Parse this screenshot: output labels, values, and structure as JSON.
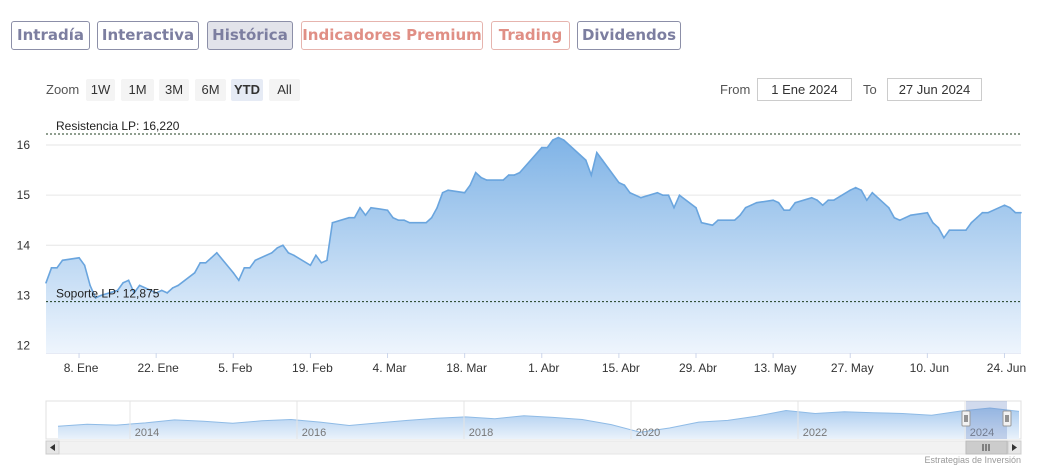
{
  "tabs": [
    {
      "label": "Intradía",
      "style": "normal"
    },
    {
      "label": "Interactiva",
      "style": "normal"
    },
    {
      "label": "Histórica",
      "style": "active"
    },
    {
      "label": "Indicadores Premium",
      "style": "premium"
    },
    {
      "label": "Trading",
      "style": "premium"
    },
    {
      "label": "Dividendos",
      "style": "normal"
    }
  ],
  "range_selector": {
    "zoom_label": "Zoom",
    "buttons": [
      "1W",
      "1M",
      "3M",
      "6M",
      "YTD",
      "All"
    ],
    "selected": "YTD",
    "from_label": "From",
    "from_value": "1 Ene 2024",
    "to_label": "To",
    "to_value": "27 Jun 2024"
  },
  "chart_data": {
    "type": "area",
    "ylim": [
      11.85,
      16.5
    ],
    "yticks": [
      12,
      13,
      14,
      15,
      16
    ],
    "xlim": [
      "2024-01-02",
      "2024-06-27"
    ],
    "xticks": [
      {
        "date": "2024-01-08",
        "label": "8. Ene"
      },
      {
        "date": "2024-01-22",
        "label": "22. Ene"
      },
      {
        "date": "2024-02-05",
        "label": "5. Feb"
      },
      {
        "date": "2024-02-19",
        "label": "19. Feb"
      },
      {
        "date": "2024-03-04",
        "label": "4. Mar"
      },
      {
        "date": "2024-03-18",
        "label": "18. Mar"
      },
      {
        "date": "2024-04-01",
        "label": "1. Abr"
      },
      {
        "date": "2024-04-15",
        "label": "15. Abr"
      },
      {
        "date": "2024-04-29",
        "label": "29. Abr"
      },
      {
        "date": "2024-05-13",
        "label": "13. May"
      },
      {
        "date": "2024-05-27",
        "label": "27. May"
      },
      {
        "date": "2024-06-10",
        "label": "10. Jun"
      },
      {
        "date": "2024-06-24",
        "label": "24. Jun"
      }
    ],
    "points": [
      [
        "2024-01-02",
        13.25
      ],
      [
        "2024-01-03",
        13.55
      ],
      [
        "2024-01-04",
        13.55
      ],
      [
        "2024-01-05",
        13.7
      ],
      [
        "2024-01-08",
        13.75
      ],
      [
        "2024-01-09",
        13.6
      ],
      [
        "2024-01-10",
        13.2
      ],
      [
        "2024-01-11",
        12.95
      ],
      [
        "2024-01-12",
        13.0
      ],
      [
        "2024-01-15",
        13.1
      ],
      [
        "2024-01-16",
        13.25
      ],
      [
        "2024-01-17",
        13.3
      ],
      [
        "2024-01-18",
        13.05
      ],
      [
        "2024-01-19",
        13.2
      ],
      [
        "2024-01-22",
        13.05
      ],
      [
        "2024-01-23",
        13.1
      ],
      [
        "2024-01-24",
        13.05
      ],
      [
        "2024-01-25",
        13.15
      ],
      [
        "2024-01-26",
        13.2
      ],
      [
        "2024-01-29",
        13.45
      ],
      [
        "2024-01-30",
        13.65
      ],
      [
        "2024-01-31",
        13.65
      ],
      [
        "2024-02-01",
        13.75
      ],
      [
        "2024-02-02",
        13.85
      ],
      [
        "2024-02-05",
        13.45
      ],
      [
        "2024-02-06",
        13.3
      ],
      [
        "2024-02-07",
        13.55
      ],
      [
        "2024-02-08",
        13.55
      ],
      [
        "2024-02-09",
        13.7
      ],
      [
        "2024-02-12",
        13.85
      ],
      [
        "2024-02-13",
        13.95
      ],
      [
        "2024-02-14",
        14.0
      ],
      [
        "2024-02-15",
        13.85
      ],
      [
        "2024-02-16",
        13.8
      ],
      [
        "2024-02-19",
        13.6
      ],
      [
        "2024-02-20",
        13.8
      ],
      [
        "2024-02-21",
        13.65
      ],
      [
        "2024-02-22",
        13.7
      ],
      [
        "2024-02-23",
        14.45
      ],
      [
        "2024-02-26",
        14.55
      ],
      [
        "2024-02-27",
        14.55
      ],
      [
        "2024-02-28",
        14.75
      ],
      [
        "2024-02-29",
        14.6
      ],
      [
        "2024-03-01",
        14.75
      ],
      [
        "2024-03-04",
        14.7
      ],
      [
        "2024-03-05",
        14.55
      ],
      [
        "2024-03-06",
        14.5
      ],
      [
        "2024-03-07",
        14.5
      ],
      [
        "2024-03-08",
        14.45
      ],
      [
        "2024-03-11",
        14.45
      ],
      [
        "2024-03-12",
        14.55
      ],
      [
        "2024-03-13",
        14.75
      ],
      [
        "2024-03-14",
        15.05
      ],
      [
        "2024-03-15",
        15.1
      ],
      [
        "2024-03-18",
        15.05
      ],
      [
        "2024-03-19",
        15.2
      ],
      [
        "2024-03-20",
        15.45
      ],
      [
        "2024-03-21",
        15.35
      ],
      [
        "2024-03-22",
        15.3
      ],
      [
        "2024-03-25",
        15.3
      ],
      [
        "2024-03-26",
        15.4
      ],
      [
        "2024-03-27",
        15.4
      ],
      [
        "2024-03-28",
        15.45
      ],
      [
        "2024-04-01",
        15.95
      ],
      [
        "2024-04-02",
        15.95
      ],
      [
        "2024-04-03",
        16.1
      ],
      [
        "2024-04-04",
        16.15
      ],
      [
        "2024-04-05",
        16.1
      ],
      [
        "2024-04-08",
        15.8
      ],
      [
        "2024-04-09",
        15.7
      ],
      [
        "2024-04-10",
        15.4
      ],
      [
        "2024-04-11",
        15.85
      ],
      [
        "2024-04-12",
        15.7
      ],
      [
        "2024-04-15",
        15.25
      ],
      [
        "2024-04-16",
        15.2
      ],
      [
        "2024-04-17",
        15.05
      ],
      [
        "2024-04-18",
        15.0
      ],
      [
        "2024-04-19",
        14.95
      ],
      [
        "2024-04-22",
        15.05
      ],
      [
        "2024-04-23",
        15.0
      ],
      [
        "2024-04-24",
        15.0
      ],
      [
        "2024-04-25",
        14.75
      ],
      [
        "2024-04-26",
        15.0
      ],
      [
        "2024-04-29",
        14.75
      ],
      [
        "2024-04-30",
        14.45
      ],
      [
        "2024-05-02",
        14.4
      ],
      [
        "2024-05-03",
        14.5
      ],
      [
        "2024-05-06",
        14.5
      ],
      [
        "2024-05-07",
        14.6
      ],
      [
        "2024-05-08",
        14.75
      ],
      [
        "2024-05-09",
        14.8
      ],
      [
        "2024-05-10",
        14.85
      ],
      [
        "2024-05-13",
        14.9
      ],
      [
        "2024-05-14",
        14.85
      ],
      [
        "2024-05-15",
        14.7
      ],
      [
        "2024-05-16",
        14.7
      ],
      [
        "2024-05-17",
        14.85
      ],
      [
        "2024-05-20",
        14.95
      ],
      [
        "2024-05-21",
        14.9
      ],
      [
        "2024-05-22",
        14.8
      ],
      [
        "2024-05-23",
        14.9
      ],
      [
        "2024-05-24",
        14.9
      ],
      [
        "2024-05-27",
        15.1
      ],
      [
        "2024-05-28",
        15.15
      ],
      [
        "2024-05-29",
        15.1
      ],
      [
        "2024-05-30",
        14.9
      ],
      [
        "2024-05-31",
        15.05
      ],
      [
        "2024-06-03",
        14.75
      ],
      [
        "2024-06-04",
        14.55
      ],
      [
        "2024-06-05",
        14.5
      ],
      [
        "2024-06-06",
        14.55
      ],
      [
        "2024-06-07",
        14.6
      ],
      [
        "2024-06-10",
        14.65
      ],
      [
        "2024-06-11",
        14.45
      ],
      [
        "2024-06-12",
        14.35
      ],
      [
        "2024-06-13",
        14.15
      ],
      [
        "2024-06-14",
        14.3
      ],
      [
        "2024-06-17",
        14.3
      ],
      [
        "2024-06-18",
        14.45
      ],
      [
        "2024-06-19",
        14.55
      ],
      [
        "2024-06-20",
        14.65
      ],
      [
        "2024-06-21",
        14.65
      ],
      [
        "2024-06-24",
        14.8
      ],
      [
        "2024-06-25",
        14.75
      ],
      [
        "2024-06-26",
        14.65
      ],
      [
        "2024-06-27",
        14.65
      ]
    ],
    "lines": [
      {
        "label": "Resistencia LP: 16,220",
        "value": 16.22
      },
      {
        "label": "Soporte LP: 12,875",
        "value": 12.875
      }
    ],
    "navigator": {
      "labels": [
        "2014",
        "2016",
        "2018",
        "2020",
        "2022",
        "2024"
      ],
      "values": [
        12.0,
        12.5,
        12.3,
        12.8,
        13.5,
        13.2,
        12.7,
        13.3,
        13.6,
        13.0,
        12.2,
        12.8,
        13.4,
        13.9,
        14.2,
        13.8,
        14.5,
        14.1,
        13.6,
        12.4,
        10.6,
        11.6,
        13.0,
        13.4,
        14.4,
        15.7,
        15.0,
        15.4,
        15.2,
        15.0,
        14.6,
        15.6,
        16.3,
        15.5
      ],
      "selected_range": "2024"
    }
  },
  "credit": "Estrategias de Inversión"
}
